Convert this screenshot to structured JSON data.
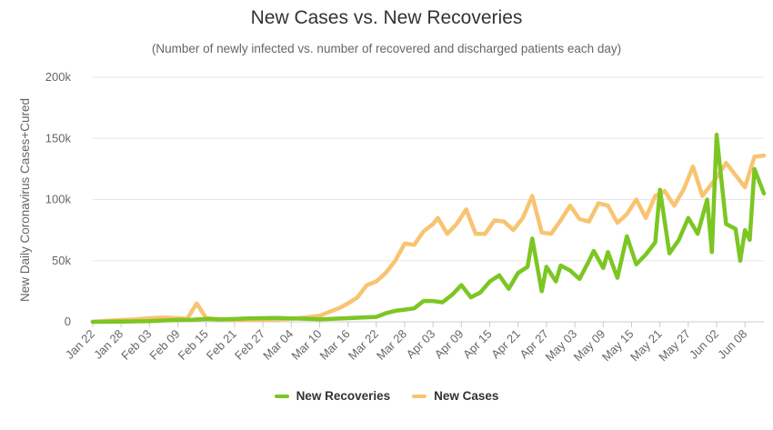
{
  "chart_data": {
    "type": "line",
    "title": "New Cases vs. New Recoveries",
    "subtitle": "(Number of newly infected vs. number of recovered and discharged patients each day)",
    "ylabel": "New Daily Coronavirus Cases+Cured",
    "xlabel": "",
    "ylim": [
      0,
      200000
    ],
    "yticks": [
      0,
      50000,
      100000,
      150000,
      200000
    ],
    "ytick_labels": [
      "0",
      "50k",
      "100k",
      "150k",
      "200k"
    ],
    "grid": true,
    "legend": "bottom-center",
    "x_start": "2020-01-22",
    "x_end": "2020-06-12",
    "xtick_labels": [
      "Jan 22",
      "Jan 28",
      "Feb 03",
      "Feb 09",
      "Feb 15",
      "Feb 21",
      "Feb 27",
      "Mar 04",
      "Mar 10",
      "Mar 16",
      "Mar 22",
      "Mar 28",
      "Apr 03",
      "Apr 09",
      "Apr 15",
      "Apr 21",
      "Apr 27",
      "May 03",
      "May 09",
      "May 15",
      "May 21",
      "May 27",
      "Jun 02",
      "Jun 08"
    ],
    "series": [
      {
        "name": "New Recoveries",
        "color": "#7cc623",
        "points": [
          [
            "2020-01-22",
            0
          ],
          [
            "2020-01-25",
            100
          ],
          [
            "2020-01-28",
            200
          ],
          [
            "2020-01-31",
            400
          ],
          [
            "2020-02-03",
            600
          ],
          [
            "2020-02-06",
            1100
          ],
          [
            "2020-02-09",
            1500
          ],
          [
            "2020-02-12",
            1600
          ],
          [
            "2020-02-15",
            2300
          ],
          [
            "2020-02-18",
            1900
          ],
          [
            "2020-02-21",
            2300
          ],
          [
            "2020-02-24",
            2800
          ],
          [
            "2020-02-27",
            3000
          ],
          [
            "2020-03-01",
            3200
          ],
          [
            "2020-03-04",
            2800
          ],
          [
            "2020-03-07",
            2500
          ],
          [
            "2020-03-10",
            2000
          ],
          [
            "2020-03-13",
            2500
          ],
          [
            "2020-03-16",
            3000
          ],
          [
            "2020-03-19",
            3500
          ],
          [
            "2020-03-22",
            4000
          ],
          [
            "2020-03-24",
            7000
          ],
          [
            "2020-03-26",
            9000
          ],
          [
            "2020-03-28",
            10000
          ],
          [
            "2020-03-30",
            11000
          ],
          [
            "2020-04-01",
            17000
          ],
          [
            "2020-04-03",
            17000
          ],
          [
            "2020-04-05",
            16000
          ],
          [
            "2020-04-07",
            22000
          ],
          [
            "2020-04-09",
            30000
          ],
          [
            "2020-04-11",
            20000
          ],
          [
            "2020-04-13",
            24000
          ],
          [
            "2020-04-15",
            33000
          ],
          [
            "2020-04-17",
            38000
          ],
          [
            "2020-04-19",
            27000
          ],
          [
            "2020-04-21",
            40000
          ],
          [
            "2020-04-23",
            45000
          ],
          [
            "2020-04-24",
            68000
          ],
          [
            "2020-04-26",
            25000
          ],
          [
            "2020-04-27",
            45000
          ],
          [
            "2020-04-29",
            33000
          ],
          [
            "2020-04-30",
            46000
          ],
          [
            "2020-05-02",
            42000
          ],
          [
            "2020-05-04",
            35000
          ],
          [
            "2020-05-06",
            50000
          ],
          [
            "2020-05-07",
            58000
          ],
          [
            "2020-05-09",
            44000
          ],
          [
            "2020-05-10",
            57000
          ],
          [
            "2020-05-12",
            36000
          ],
          [
            "2020-05-14",
            70000
          ],
          [
            "2020-05-16",
            47000
          ],
          [
            "2020-05-18",
            55000
          ],
          [
            "2020-05-20",
            65000
          ],
          [
            "2020-05-21",
            108000
          ],
          [
            "2020-05-23",
            56000
          ],
          [
            "2020-05-25",
            67000
          ],
          [
            "2020-05-27",
            85000
          ],
          [
            "2020-05-29",
            72000
          ],
          [
            "2020-05-31",
            100000
          ],
          [
            "2020-06-01",
            57000
          ],
          [
            "2020-06-02",
            153000
          ],
          [
            "2020-06-04",
            80000
          ],
          [
            "2020-06-06",
            76000
          ],
          [
            "2020-06-07",
            50000
          ],
          [
            "2020-06-08",
            75000
          ],
          [
            "2020-06-09",
            67000
          ],
          [
            "2020-06-10",
            125000
          ],
          [
            "2020-06-12",
            105000
          ]
        ]
      },
      {
        "name": "New Cases",
        "color": "#f8c471",
        "points": [
          [
            "2020-01-22",
            0
          ],
          [
            "2020-01-25",
            800
          ],
          [
            "2020-01-28",
            1500
          ],
          [
            "2020-01-31",
            2000
          ],
          [
            "2020-02-03",
            3000
          ],
          [
            "2020-02-06",
            3500
          ],
          [
            "2020-02-09",
            3000
          ],
          [
            "2020-02-11",
            2500
          ],
          [
            "2020-02-13",
            15000
          ],
          [
            "2020-02-15",
            3000
          ],
          [
            "2020-02-18",
            2000
          ],
          [
            "2020-02-21",
            1500
          ],
          [
            "2020-02-24",
            1500
          ],
          [
            "2020-02-27",
            1800
          ],
          [
            "2020-03-01",
            2000
          ],
          [
            "2020-03-04",
            2500
          ],
          [
            "2020-03-07",
            3500
          ],
          [
            "2020-03-10",
            5000
          ],
          [
            "2020-03-12",
            8000
          ],
          [
            "2020-03-14",
            11000
          ],
          [
            "2020-03-16",
            15000
          ],
          [
            "2020-03-18",
            20000
          ],
          [
            "2020-03-20",
            30000
          ],
          [
            "2020-03-22",
            33000
          ],
          [
            "2020-03-24",
            40000
          ],
          [
            "2020-03-26",
            50000
          ],
          [
            "2020-03-28",
            64000
          ],
          [
            "2020-03-30",
            63000
          ],
          [
            "2020-04-01",
            74000
          ],
          [
            "2020-04-03",
            80000
          ],
          [
            "2020-04-04",
            85000
          ],
          [
            "2020-04-06",
            72000
          ],
          [
            "2020-04-08",
            80000
          ],
          [
            "2020-04-10",
            92000
          ],
          [
            "2020-04-12",
            72000
          ],
          [
            "2020-04-14",
            72000
          ],
          [
            "2020-04-16",
            83000
          ],
          [
            "2020-04-18",
            82000
          ],
          [
            "2020-04-20",
            75000
          ],
          [
            "2020-04-22",
            85000
          ],
          [
            "2020-04-24",
            103000
          ],
          [
            "2020-04-26",
            73000
          ],
          [
            "2020-04-28",
            72000
          ],
          [
            "2020-04-30",
            83000
          ],
          [
            "2020-05-02",
            95000
          ],
          [
            "2020-05-04",
            84000
          ],
          [
            "2020-05-06",
            82000
          ],
          [
            "2020-05-08",
            97000
          ],
          [
            "2020-05-10",
            95000
          ],
          [
            "2020-05-12",
            81000
          ],
          [
            "2020-05-14",
            88000
          ],
          [
            "2020-05-16",
            100000
          ],
          [
            "2020-05-18",
            85000
          ],
          [
            "2020-05-20",
            103000
          ],
          [
            "2020-05-22",
            107000
          ],
          [
            "2020-05-24",
            95000
          ],
          [
            "2020-05-26",
            108000
          ],
          [
            "2020-05-28",
            127000
          ],
          [
            "2020-05-30",
            103000
          ],
          [
            "2020-06-02",
            118000
          ],
          [
            "2020-06-04",
            130000
          ],
          [
            "2020-06-06",
            120000
          ],
          [
            "2020-06-08",
            110000
          ],
          [
            "2020-06-10",
            135000
          ],
          [
            "2020-06-12",
            136000
          ]
        ]
      }
    ]
  }
}
